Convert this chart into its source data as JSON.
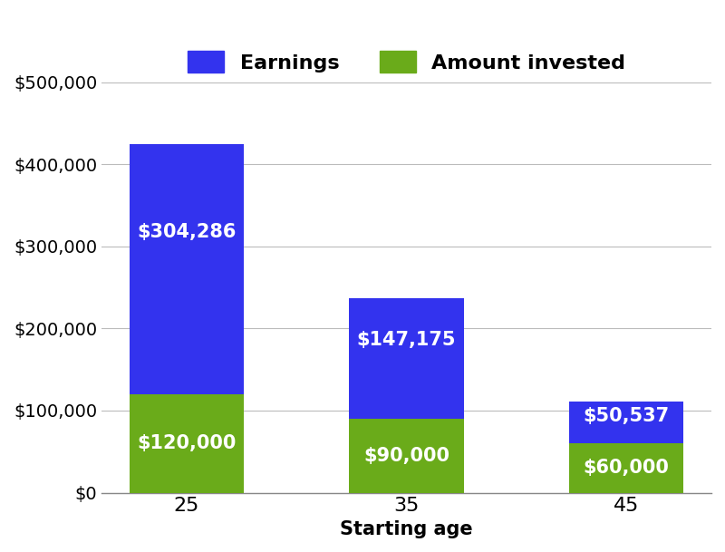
{
  "categories": [
    "25",
    "35",
    "45"
  ],
  "amount_invested": [
    120000,
    90000,
    60000
  ],
  "earnings": [
    304286,
    147175,
    50537
  ],
  "amount_invested_labels": [
    "$120,000",
    "$90,000",
    "$60,000"
  ],
  "earnings_labels": [
    "$304,286",
    "$147,175",
    "$50,537"
  ],
  "bar_color_earnings": "#3333EE",
  "bar_color_invested": "#6AAB1A",
  "xlabel": "Starting age",
  "ylim": [
    0,
    500000
  ],
  "yticks": [
    0,
    100000,
    200000,
    300000,
    400000,
    500000
  ],
  "legend_earnings": "Earnings",
  "legend_invested": "Amount invested",
  "background_color": "#ffffff",
  "grid_color": "#bbbbbb",
  "bar_width": 0.52,
  "label_fontsize": 14,
  "tick_fontsize": 14,
  "legend_fontsize": 16,
  "annotation_fontsize": 15
}
